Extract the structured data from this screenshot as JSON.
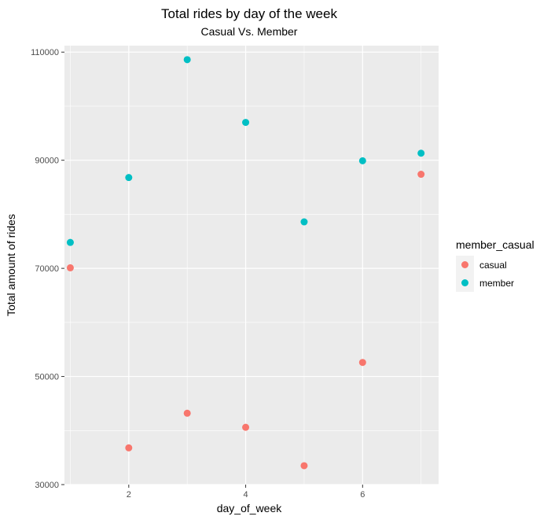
{
  "chart_data": {
    "type": "scatter",
    "title": "Total rides by day of the week",
    "subtitle": "Casual Vs. Member",
    "xlabel": "day_of_week",
    "ylabel": "Total amount of rides",
    "xlim": [
      0.9,
      7.3
    ],
    "ylim": [
      30000,
      111200
    ],
    "x_ticks": [
      2,
      4,
      6
    ],
    "y_ticks": [
      30000,
      50000,
      70000,
      90000,
      110000
    ],
    "x_tick_labels": [
      "2",
      "4",
      "6"
    ],
    "y_tick_labels": [
      "30000",
      "50000",
      "70000",
      "90000",
      "110000"
    ],
    "grid": true,
    "legend": {
      "title": "member_casual",
      "position": "right"
    },
    "series": [
      {
        "name": "casual",
        "color": "#F8766D",
        "x": [
          1,
          2,
          3,
          4,
          5,
          6,
          7
        ],
        "y": [
          70100,
          36800,
          43200,
          40600,
          33500,
          52600,
          87400
        ]
      },
      {
        "name": "member",
        "color": "#00BFC4",
        "x": [
          1,
          2,
          3,
          4,
          5,
          6,
          7
        ],
        "y": [
          74800,
          86800,
          108600,
          97000,
          78600,
          89900,
          91300
        ]
      }
    ]
  }
}
